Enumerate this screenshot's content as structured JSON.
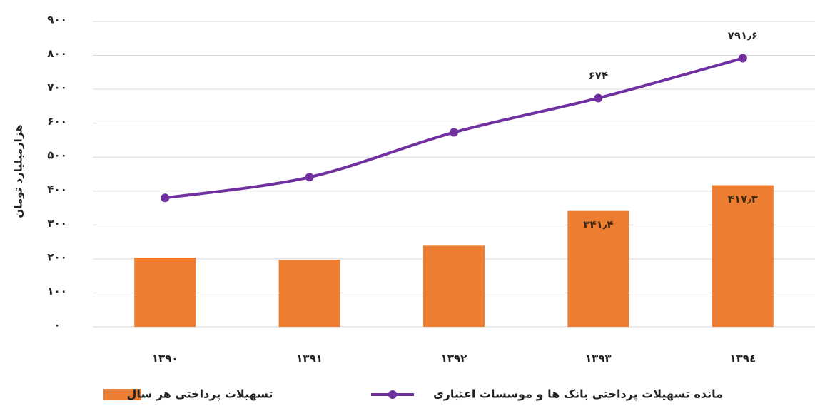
{
  "chart_data": {
    "type": "bar",
    "y_label": "هزارمیلیارد تومان",
    "categories": [
      "۱۳۹۰",
      "۱۳۹۱",
      "۱۳۹۲",
      "۱۳۹۳",
      "۱۳۹٤"
    ],
    "series": [
      {
        "name": "تسهیلات پرداختی هر سال",
        "type": "bar",
        "color": "#ed7d31",
        "values": [
          204,
          197,
          239,
          341.4,
          417.3
        ],
        "value_labels": [
          null,
          null,
          null,
          "۳۴۱٫۴",
          "۴۱۷٫۳"
        ]
      },
      {
        "name": "مانده تسهیلات پرداختی بانک ها و موسسات اعتباری",
        "type": "line",
        "color": "#7030a0",
        "values": [
          380,
          441,
          573,
          674,
          791.6
        ],
        "value_labels": [
          null,
          null,
          null,
          "۶۷۴",
          "۷۹۱٫۶"
        ]
      }
    ],
    "ylim": [
      0,
      900
    ],
    "yticks": [
      {
        "value": 0,
        "label": "۰"
      },
      {
        "value": 100,
        "label": "۱۰۰"
      },
      {
        "value": 200,
        "label": "۲۰۰"
      },
      {
        "value": 300,
        "label": "۳۰۰"
      },
      {
        "value": 400,
        "label": "۴۰۰"
      },
      {
        "value": 500,
        "label": "۵۰۰"
      },
      {
        "value": 600,
        "label": "۶۰۰"
      },
      {
        "value": 700,
        "label": "۷۰۰"
      },
      {
        "value": 800,
        "label": "۸۰۰"
      },
      {
        "value": 900,
        "label": "۹۰۰"
      }
    ],
    "grid": true
  }
}
